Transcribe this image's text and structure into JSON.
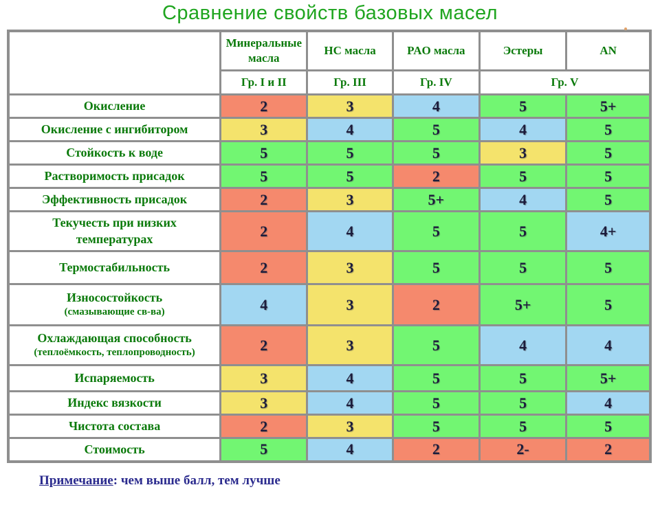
{
  "title": "Сравнение свойств базовых масел",
  "note": {
    "label": "Примечание",
    "text": ": чем выше балл, тем лучше"
  },
  "colors": {
    "red": "#F5896D",
    "yellow": "#F4E36C",
    "blue": "#A2D7F2",
    "green": "#72F672",
    "border": "#8F8F8F",
    "title_green": "#1FA51F",
    "label_green": "#0B7A0B",
    "score_navy": "#1C1C3C",
    "note_navy": "#2B2B8E"
  },
  "chart_data": {
    "type": "table",
    "title": "Сравнение свойств базовых масел",
    "columns": [
      {
        "name": "Минеральные масла",
        "group": "Гр. I и II"
      },
      {
        "name": "HC масла",
        "group": "Гр. III"
      },
      {
        "name": "PAO масла",
        "group": "Гр. IV"
      },
      {
        "name": "Эстеры",
        "group": "Гр. V"
      },
      {
        "name": "AN",
        "group": "Гр. V"
      }
    ],
    "group_labels": [
      "Гр. I и II",
      "Гр. III",
      "Гр. IV",
      "Гр. V"
    ],
    "color_meaning": {
      "red": "2",
      "yellow": "3",
      "blue": "4",
      "green": "5"
    },
    "rows": [
      {
        "label": "Окисление",
        "cells": [
          {
            "v": "2",
            "c": "red"
          },
          {
            "v": "3",
            "c": "yellow"
          },
          {
            "v": "4",
            "c": "blue"
          },
          {
            "v": "5",
            "c": "green"
          },
          {
            "v": "5+",
            "c": "green"
          }
        ]
      },
      {
        "label": "Окисление с ингибитором",
        "cells": [
          {
            "v": "3",
            "c": "yellow"
          },
          {
            "v": "4",
            "c": "blue"
          },
          {
            "v": "5",
            "c": "green"
          },
          {
            "v": "4",
            "c": "blue"
          },
          {
            "v": "5",
            "c": "green"
          }
        ]
      },
      {
        "label": "Стойкость к воде",
        "cells": [
          {
            "v": "5",
            "c": "green"
          },
          {
            "v": "5",
            "c": "green"
          },
          {
            "v": "5",
            "c": "green"
          },
          {
            "v": "3",
            "c": "yellow"
          },
          {
            "v": "5",
            "c": "green"
          }
        ]
      },
      {
        "label": "Растворимость присадок",
        "cells": [
          {
            "v": "5",
            "c": "green"
          },
          {
            "v": "5",
            "c": "green"
          },
          {
            "v": "2",
            "c": "red"
          },
          {
            "v": "5",
            "c": "green"
          },
          {
            "v": "5",
            "c": "green"
          }
        ]
      },
      {
        "label": "Эффективность присадок",
        "cells": [
          {
            "v": "2",
            "c": "red"
          },
          {
            "v": "3",
            "c": "yellow"
          },
          {
            "v": "5+",
            "c": "green"
          },
          {
            "v": "4",
            "c": "blue"
          },
          {
            "v": "5",
            "c": "green"
          }
        ]
      },
      {
        "label": "Текучесть при низких температурах",
        "cells": [
          {
            "v": "2",
            "c": "red"
          },
          {
            "v": "4",
            "c": "blue"
          },
          {
            "v": "5",
            "c": "green"
          },
          {
            "v": "5",
            "c": "green"
          },
          {
            "v": "4+",
            "c": "blue"
          }
        ]
      },
      {
        "label": "Термостабильность",
        "cells": [
          {
            "v": "2",
            "c": "red"
          },
          {
            "v": "3",
            "c": "yellow"
          },
          {
            "v": "5",
            "c": "green"
          },
          {
            "v": "5",
            "c": "green"
          },
          {
            "v": "5",
            "c": "green"
          }
        ]
      },
      {
        "label": "Износостойкость",
        "sublabel": "(смазывающие св-ва)",
        "cells": [
          {
            "v": "4",
            "c": "blue"
          },
          {
            "v": "3",
            "c": "yellow"
          },
          {
            "v": "2",
            "c": "red"
          },
          {
            "v": "5+",
            "c": "green"
          },
          {
            "v": "5",
            "c": "green"
          }
        ]
      },
      {
        "label": "Охлаждающая способность",
        "sublabel": "(теплоёмкость, теплопроводность)",
        "cells": [
          {
            "v": "2",
            "c": "red"
          },
          {
            "v": "3",
            "c": "yellow"
          },
          {
            "v": "5",
            "c": "green"
          },
          {
            "v": "4",
            "c": "blue"
          },
          {
            "v": "4",
            "c": "blue"
          }
        ]
      },
      {
        "label": "Испаряемость",
        "cells": [
          {
            "v": "3",
            "c": "yellow"
          },
          {
            "v": "4",
            "c": "blue"
          },
          {
            "v": "5",
            "c": "green"
          },
          {
            "v": "5",
            "c": "green"
          },
          {
            "v": "5+",
            "c": "green"
          }
        ]
      },
      {
        "label": "Индекс вязкости",
        "cells": [
          {
            "v": "3",
            "c": "yellow"
          },
          {
            "v": "4",
            "c": "blue"
          },
          {
            "v": "5",
            "c": "green"
          },
          {
            "v": "5",
            "c": "green"
          },
          {
            "v": "4",
            "c": "blue"
          }
        ]
      },
      {
        "label": "Чистота состава",
        "cells": [
          {
            "v": "2",
            "c": "red"
          },
          {
            "v": "3",
            "c": "yellow"
          },
          {
            "v": "5",
            "c": "green"
          },
          {
            "v": "5",
            "c": "green"
          },
          {
            "v": "5",
            "c": "green"
          }
        ]
      },
      {
        "label": "Стоимость",
        "cells": [
          {
            "v": "5",
            "c": "green"
          },
          {
            "v": "4",
            "c": "blue"
          },
          {
            "v": "2",
            "c": "red"
          },
          {
            "v": "2-",
            "c": "red"
          },
          {
            "v": "2",
            "c": "red"
          }
        ]
      }
    ],
    "note": "Примечание: чем выше балл, тем лучше"
  }
}
